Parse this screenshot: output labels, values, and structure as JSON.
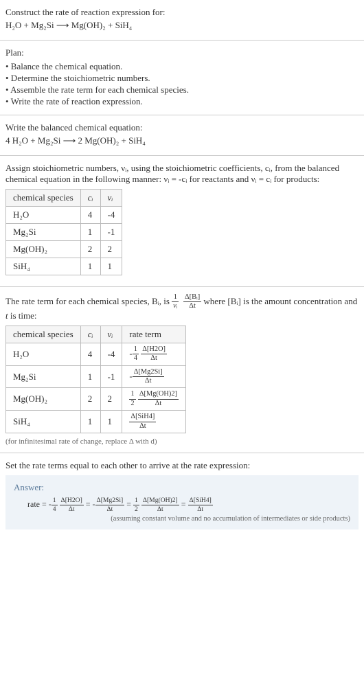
{
  "prompt": {
    "line1": "Construct the rate of reaction expression for:",
    "equation": "H₂O + Mg₂Si  ⟶  Mg(OH)₂ + SiH₄"
  },
  "plan": {
    "title": "Plan:",
    "items": [
      "• Balance the chemical equation.",
      "• Determine the stoichiometric numbers.",
      "• Assemble the rate term for each chemical species.",
      "• Write the rate of reaction expression."
    ]
  },
  "balanced": {
    "title": "Write the balanced chemical equation:",
    "equation": "4 H₂O + Mg₂Si  ⟶  2 Mg(OH)₂ + SiH₄"
  },
  "stoich": {
    "intro1": "Assign stoichiometric numbers, νᵢ, using the stoichiometric coefficients, cᵢ, from the balanced chemical equation in the following manner: νᵢ = -cᵢ for reactants and νᵢ = cᵢ for products:",
    "headers": [
      "chemical species",
      "cᵢ",
      "νᵢ"
    ],
    "rows": [
      [
        "H₂O",
        "4",
        "-4"
      ],
      [
        "Mg₂Si",
        "1",
        "-1"
      ],
      [
        "Mg(OH)₂",
        "2",
        "2"
      ],
      [
        "SiH₄",
        "1",
        "1"
      ]
    ]
  },
  "rateterm": {
    "intro_a": "The rate term for each chemical species, Bᵢ, is ",
    "intro_b": " where [Bᵢ] is the amount concentration and ",
    "intro_c": " is time:",
    "headers": [
      "chemical species",
      "cᵢ",
      "νᵢ",
      "rate term"
    ],
    "rows": [
      {
        "sp": "H₂O",
        "c": "4",
        "v": "-4",
        "coef_num": "1",
        "coef_den": "4",
        "d_num": "Δ[H2O]",
        "d_den": "Δt",
        "neg": "-"
      },
      {
        "sp": "Mg₂Si",
        "c": "1",
        "v": "-1",
        "coef_num": "",
        "coef_den": "",
        "d_num": "Δ[Mg2Si]",
        "d_den": "Δt",
        "neg": "-"
      },
      {
        "sp": "Mg(OH)₂",
        "c": "2",
        "v": "2",
        "coef_num": "1",
        "coef_den": "2",
        "d_num": "Δ[Mg(OH)2]",
        "d_den": "Δt",
        "neg": ""
      },
      {
        "sp": "SiH₄",
        "c": "1",
        "v": "1",
        "coef_num": "",
        "coef_den": "",
        "d_num": "Δ[SiH4]",
        "d_den": "Δt",
        "neg": ""
      }
    ],
    "note": "(for infinitesimal rate of change, replace Δ with d)"
  },
  "final": {
    "title": "Set the rate terms equal to each other to arrive at the rate expression:",
    "answer_label": "Answer:",
    "rate_prefix": "rate = ",
    "terms": [
      {
        "neg": "-",
        "cn": "1",
        "cd": "4",
        "dn": "Δ[H2O]",
        "dd": "Δt"
      },
      {
        "neg": "-",
        "cn": "",
        "cd": "",
        "dn": "Δ[Mg2Si]",
        "dd": "Δt"
      },
      {
        "neg": "",
        "cn": "1",
        "cd": "2",
        "dn": "Δ[Mg(OH)2]",
        "dd": "Δt"
      },
      {
        "neg": "",
        "cn": "",
        "cd": "",
        "dn": "Δ[SiH4]",
        "dd": "Δt"
      }
    ],
    "note": "(assuming constant volume and no accumulation of intermediates or side products)"
  },
  "frac_main": {
    "n1": "1",
    "d1": "νᵢ",
    "n2": "Δ[Bᵢ]",
    "d2": "Δt"
  },
  "t_label": "t"
}
